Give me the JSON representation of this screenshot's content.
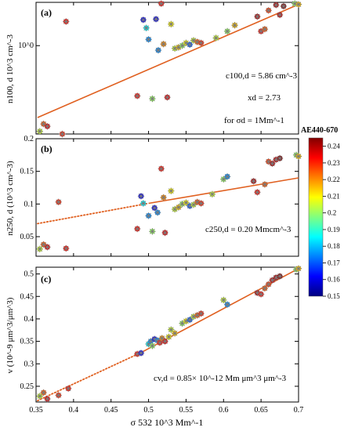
{
  "chart_data": [
    {
      "panel": "(a)",
      "type": "scatter",
      "yscale": "log",
      "ylabel": "n100, d 10^3 cm^-3",
      "ylim": [
        0.2,
        2.2
      ],
      "yticks": [
        {
          "value": 1.0,
          "label": "10^0"
        }
      ],
      "xlim": [
        0.35,
        0.7
      ],
      "fit": {
        "style": "solid",
        "x": [
          0.352,
          0.7
        ],
        "y": [
          0.27,
          2.12
        ]
      },
      "annotations": [
        "c100,d = 5.86 cm^-3",
        "xd = 2.73",
        "for σd = 1Mm^-1"
      ],
      "points": [
        {
          "x": 0.355,
          "y": 0.21,
          "ae": 0.205
        },
        {
          "x": 0.36,
          "y": 0.24,
          "ae": 0.225
        },
        {
          "x": 0.365,
          "y": 0.23,
          "ae": 0.235
        },
        {
          "x": 0.385,
          "y": 0.2,
          "ae": 0.23
        },
        {
          "x": 0.39,
          "y": 1.55,
          "ae": 0.232
        },
        {
          "x": 0.485,
          "y": 0.4,
          "ae": 0.232
        },
        {
          "x": 0.493,
          "y": 1.6,
          "ae": 0.16
        },
        {
          "x": 0.497,
          "y": 1.38,
          "ae": 0.185
        },
        {
          "x": 0.5,
          "y": 1.12,
          "ae": 0.175
        },
        {
          "x": 0.505,
          "y": 0.38,
          "ae": 0.2
        },
        {
          "x": 0.51,
          "y": 1.62,
          "ae": 0.16
        },
        {
          "x": 0.513,
          "y": 0.92,
          "ae": 0.175
        },
        {
          "x": 0.517,
          "y": 2.15,
          "ae": 0.232
        },
        {
          "x": 0.52,
          "y": 1.03,
          "ae": 0.22
        },
        {
          "x": 0.525,
          "y": 0.39,
          "ae": 0.235
        },
        {
          "x": 0.53,
          "y": 1.48,
          "ae": 0.21
        },
        {
          "x": 0.535,
          "y": 0.95,
          "ae": 0.205
        },
        {
          "x": 0.54,
          "y": 0.97,
          "ae": 0.215
        },
        {
          "x": 0.545,
          "y": 1.0,
          "ae": 0.2
        },
        {
          "x": 0.55,
          "y": 1.05,
          "ae": 0.21
        },
        {
          "x": 0.555,
          "y": 1.02,
          "ae": 0.17
        },
        {
          "x": 0.56,
          "y": 1.1,
          "ae": 0.205
        },
        {
          "x": 0.565,
          "y": 1.07,
          "ae": 0.225
        },
        {
          "x": 0.57,
          "y": 1.05,
          "ae": 0.23
        },
        {
          "x": 0.59,
          "y": 1.15,
          "ae": 0.205
        },
        {
          "x": 0.605,
          "y": 1.3,
          "ae": 0.2
        },
        {
          "x": 0.615,
          "y": 1.45,
          "ae": 0.215
        },
        {
          "x": 0.645,
          "y": 1.7,
          "ae": 0.24
        },
        {
          "x": 0.65,
          "y": 1.3,
          "ae": 0.232
        },
        {
          "x": 0.655,
          "y": 1.35,
          "ae": 0.225
        },
        {
          "x": 0.66,
          "y": 1.9,
          "ae": 0.228
        },
        {
          "x": 0.67,
          "y": 2.1,
          "ae": 0.24
        },
        {
          "x": 0.675,
          "y": 1.75,
          "ae": 0.238
        },
        {
          "x": 0.68,
          "y": 2.05,
          "ae": 0.245
        },
        {
          "x": 0.695,
          "y": 2.15,
          "ae": 0.2
        },
        {
          "x": 0.7,
          "y": 2.12,
          "ae": 0.215
        }
      ]
    },
    {
      "panel": "(b)",
      "type": "scatter",
      "ylabel": "n250, d (10^3 cm^-3)",
      "ylim": [
        0.02,
        0.2
      ],
      "yticks": [
        {
          "value": 0.05,
          "label": "0.05"
        },
        {
          "value": 0.1,
          "label": "0.1"
        },
        {
          "value": 0.15,
          "label": "0.15"
        },
        {
          "value": 0.2,
          "label": "0.2"
        }
      ],
      "xlim": [
        0.35,
        0.7
      ],
      "fit": {
        "segments": [
          {
            "style": "dotted",
            "x": [
              0.352,
              0.5
            ],
            "y": [
              0.07,
              0.101
            ]
          },
          {
            "style": "solid",
            "x": [
              0.5,
              0.7
            ],
            "y": [
              0.101,
              0.14
            ]
          }
        ]
      },
      "annotations": [
        "c250,d = 0.20 Mmcm^-3"
      ],
      "points": [
        {
          "x": 0.355,
          "y": 0.031,
          "ae": 0.205
        },
        {
          "x": 0.36,
          "y": 0.038,
          "ae": 0.225
        },
        {
          "x": 0.365,
          "y": 0.034,
          "ae": 0.235
        },
        {
          "x": 0.38,
          "y": 0.103,
          "ae": 0.23
        },
        {
          "x": 0.39,
          "y": 0.032,
          "ae": 0.232
        },
        {
          "x": 0.485,
          "y": 0.062,
          "ae": 0.232
        },
        {
          "x": 0.49,
          "y": 0.112,
          "ae": 0.16
        },
        {
          "x": 0.493,
          "y": 0.101,
          "ae": 0.185
        },
        {
          "x": 0.5,
          "y": 0.082,
          "ae": 0.175
        },
        {
          "x": 0.505,
          "y": 0.058,
          "ae": 0.2
        },
        {
          "x": 0.508,
          "y": 0.094,
          "ae": 0.16
        },
        {
          "x": 0.512,
          "y": 0.087,
          "ae": 0.175
        },
        {
          "x": 0.517,
          "y": 0.154,
          "ae": 0.232
        },
        {
          "x": 0.52,
          "y": 0.11,
          "ae": 0.22
        },
        {
          "x": 0.522,
          "y": 0.056,
          "ae": 0.235
        },
        {
          "x": 0.53,
          "y": 0.12,
          "ae": 0.21
        },
        {
          "x": 0.535,
          "y": 0.092,
          "ae": 0.205
        },
        {
          "x": 0.54,
          "y": 0.095,
          "ae": 0.215
        },
        {
          "x": 0.545,
          "y": 0.1,
          "ae": 0.2
        },
        {
          "x": 0.55,
          "y": 0.102,
          "ae": 0.21
        },
        {
          "x": 0.555,
          "y": 0.097,
          "ae": 0.17
        },
        {
          "x": 0.56,
          "y": 0.099,
          "ae": 0.205
        },
        {
          "x": 0.565,
          "y": 0.103,
          "ae": 0.225
        },
        {
          "x": 0.57,
          "y": 0.101,
          "ae": 0.23
        },
        {
          "x": 0.585,
          "y": 0.115,
          "ae": 0.205
        },
        {
          "x": 0.6,
          "y": 0.138,
          "ae": 0.2
        },
        {
          "x": 0.605,
          "y": 0.142,
          "ae": 0.175
        },
        {
          "x": 0.64,
          "y": 0.135,
          "ae": 0.24
        },
        {
          "x": 0.645,
          "y": 0.118,
          "ae": 0.232
        },
        {
          "x": 0.655,
          "y": 0.13,
          "ae": 0.225
        },
        {
          "x": 0.66,
          "y": 0.165,
          "ae": 0.228
        },
        {
          "x": 0.665,
          "y": 0.162,
          "ae": 0.24
        },
        {
          "x": 0.67,
          "y": 0.168,
          "ae": 0.238
        },
        {
          "x": 0.675,
          "y": 0.17,
          "ae": 0.245
        },
        {
          "x": 0.697,
          "y": 0.175,
          "ae": 0.2
        },
        {
          "x": 0.7,
          "y": 0.173,
          "ae": 0.215
        }
      ]
    },
    {
      "panel": "(c)",
      "type": "scatter",
      "ylabel": "v (10^-9 μm^3/μm^3)",
      "ylim": [
        0.215,
        0.515
      ],
      "yticks": [
        {
          "value": 0.25,
          "label": "0.25"
        },
        {
          "value": 0.3,
          "label": "0.3"
        },
        {
          "value": 0.35,
          "label": "0.35"
        },
        {
          "value": 0.4,
          "label": "0.4"
        },
        {
          "value": 0.45,
          "label": "0.45"
        },
        {
          "value": 0.5,
          "label": "0.5"
        }
      ],
      "xlim": [
        0.35,
        0.7
      ],
      "xlabel": "σ 532 10^3 Mm^-1",
      "xticks": [
        0.35,
        0.4,
        0.45,
        0.5,
        0.55,
        0.6,
        0.65,
        0.7
      ],
      "fit": {
        "segments": [
          {
            "style": "dotted",
            "x": [
              0.352,
              0.49
            ],
            "y": [
              0.218,
              0.325
            ]
          },
          {
            "style": "solid",
            "x": [
              0.49,
              0.7
            ],
            "y": [
              0.325,
              0.512
            ]
          }
        ]
      },
      "annotations": [
        "cv,d = 0.85× 10^-12 Mm μm^3 μm^-3"
      ],
      "points": [
        {
          "x": 0.355,
          "y": 0.228,
          "ae": 0.205
        },
        {
          "x": 0.36,
          "y": 0.236,
          "ae": 0.225
        },
        {
          "x": 0.365,
          "y": 0.222,
          "ae": 0.235
        },
        {
          "x": 0.38,
          "y": 0.23,
          "ae": 0.23
        },
        {
          "x": 0.393,
          "y": 0.245,
          "ae": 0.232
        },
        {
          "x": 0.485,
          "y": 0.322,
          "ae": 0.232
        },
        {
          "x": 0.49,
          "y": 0.324,
          "ae": 0.16
        },
        {
          "x": 0.5,
          "y": 0.344,
          "ae": 0.185
        },
        {
          "x": 0.503,
          "y": 0.35,
          "ae": 0.175
        },
        {
          "x": 0.505,
          "y": 0.34,
          "ae": 0.2
        },
        {
          "x": 0.508,
          "y": 0.355,
          "ae": 0.16
        },
        {
          "x": 0.512,
          "y": 0.352,
          "ae": 0.175
        },
        {
          "x": 0.515,
          "y": 0.347,
          "ae": 0.232
        },
        {
          "x": 0.518,
          "y": 0.357,
          "ae": 0.22
        },
        {
          "x": 0.522,
          "y": 0.35,
          "ae": 0.235
        },
        {
          "x": 0.527,
          "y": 0.36,
          "ae": 0.21
        },
        {
          "x": 0.53,
          "y": 0.376,
          "ae": 0.205
        },
        {
          "x": 0.535,
          "y": 0.368,
          "ae": 0.215
        },
        {
          "x": 0.545,
          "y": 0.39,
          "ae": 0.2
        },
        {
          "x": 0.55,
          "y": 0.395,
          "ae": 0.21
        },
        {
          "x": 0.555,
          "y": 0.398,
          "ae": 0.17
        },
        {
          "x": 0.56,
          "y": 0.405,
          "ae": 0.205
        },
        {
          "x": 0.565,
          "y": 0.408,
          "ae": 0.225
        },
        {
          "x": 0.57,
          "y": 0.412,
          "ae": 0.23
        },
        {
          "x": 0.6,
          "y": 0.442,
          "ae": 0.205
        },
        {
          "x": 0.605,
          "y": 0.432,
          "ae": 0.175
        },
        {
          "x": 0.645,
          "y": 0.458,
          "ae": 0.24
        },
        {
          "x": 0.65,
          "y": 0.455,
          "ae": 0.232
        },
        {
          "x": 0.655,
          "y": 0.468,
          "ae": 0.225
        },
        {
          "x": 0.66,
          "y": 0.477,
          "ae": 0.228
        },
        {
          "x": 0.665,
          "y": 0.486,
          "ae": 0.238
        },
        {
          "x": 0.67,
          "y": 0.492,
          "ae": 0.24
        },
        {
          "x": 0.675,
          "y": 0.495,
          "ae": 0.245
        },
        {
          "x": 0.697,
          "y": 0.51,
          "ae": 0.2
        },
        {
          "x": 0.7,
          "y": 0.512,
          "ae": 0.215
        }
      ]
    }
  ],
  "colorbar": {
    "label": "AE440-670",
    "range": [
      0.15,
      0.245
    ],
    "ticks": [
      "0.24",
      "0.23",
      "0.22",
      "0.21",
      "0.2",
      "0.19",
      "0.18",
      "0.17",
      "0.16",
      "0.15"
    ],
    "colors": [
      "#000080",
      "#0000ff",
      "#0080ff",
      "#00ffff",
      "#80ff80",
      "#ffff00",
      "#ff8000",
      "#ff0000",
      "#800000"
    ]
  },
  "fit_color": "#e06020"
}
